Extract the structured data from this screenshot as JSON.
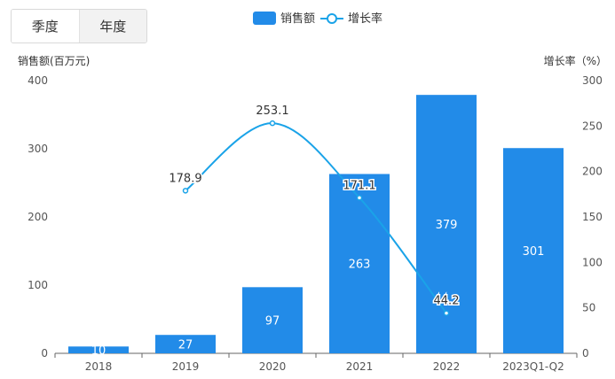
{
  "toggle": {
    "options": [
      "季度",
      "年度"
    ],
    "selected": "季度"
  },
  "colors": {
    "bar": "#228be8",
    "line": "#1aa3e8",
    "axis": "#666666",
    "text": "#555555",
    "grid": "#e5e5e5"
  },
  "chart_data": {
    "type": "bar",
    "categories": [
      "2018",
      "2019",
      "2020",
      "2021",
      "2022",
      "2023Q1-Q2"
    ],
    "series": [
      {
        "name": "销售额",
        "type": "bar",
        "axis": "left",
        "values": [
          10,
          27,
          97,
          263,
          379,
          301
        ],
        "labels": [
          "10",
          "27",
          "97",
          "263",
          "379",
          "301"
        ]
      },
      {
        "name": "增长率",
        "type": "line",
        "axis": "right",
        "smooth": true,
        "values": [
          null,
          178.9,
          253.1,
          171.1,
          44.2,
          null
        ],
        "labels": [
          "",
          "178.9",
          "253.1",
          "171.1",
          "44.2",
          ""
        ]
      }
    ],
    "yAxisLeft": {
      "label": "销售额(百万元)",
      "min": 0,
      "max": 400,
      "ticks": [
        0,
        100,
        200,
        300,
        400
      ]
    },
    "yAxisRight": {
      "label": "增长率（%）",
      "min": 0,
      "max": 300,
      "ticks": [
        0,
        50,
        100,
        150,
        200,
        250,
        300
      ]
    },
    "legend": "top-center",
    "grid": false
  }
}
